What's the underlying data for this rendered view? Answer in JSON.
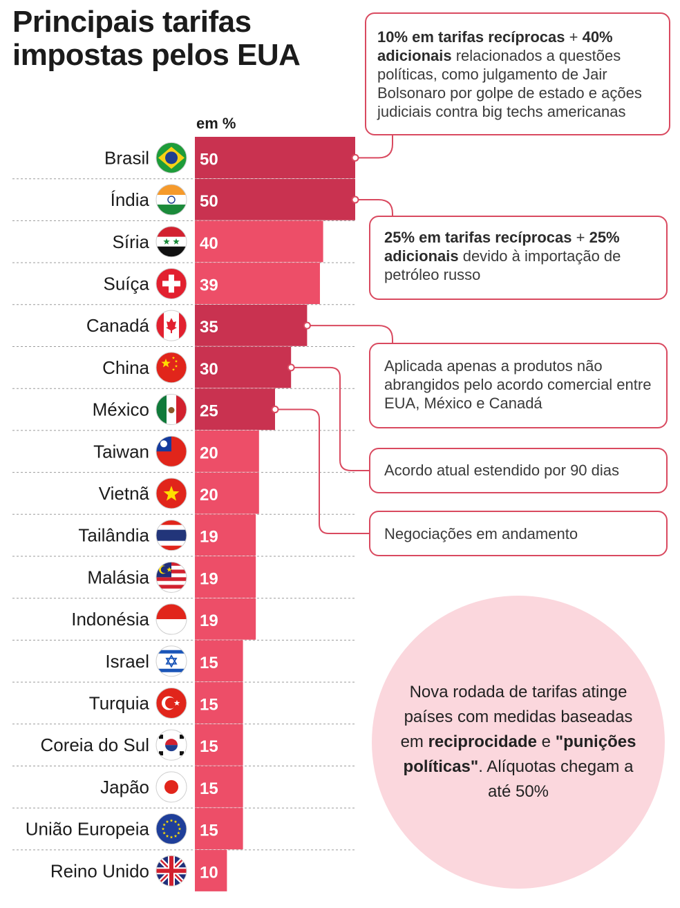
{
  "title": "Principais tarifas impostas pelos EUA",
  "unit_label": "em %",
  "colors": {
    "bar_dark": "#c93250",
    "bar_light": "#ed4e68",
    "connector": "#d9495f",
    "summary_bg": "#fbd7dd"
  },
  "chart_data": {
    "type": "bar",
    "orientation": "horizontal",
    "title": "Principais tarifas impostas pelos EUA",
    "xlabel": "em %",
    "ylabel": "",
    "xlim": [
      0,
      50
    ],
    "grid": false,
    "categories": [
      "Brasil",
      "Índia",
      "Síria",
      "Suíça",
      "Canadá",
      "China",
      "México",
      "Taiwan",
      "Vietnã",
      "Tailândia",
      "Malásia",
      "Indonésia",
      "Israel",
      "Turquia",
      "Coreia do Sul",
      "Japão",
      "União Europeia",
      "Reino Unido"
    ],
    "values": [
      50,
      50,
      40,
      39,
      35,
      30,
      25,
      20,
      20,
      19,
      19,
      19,
      15,
      15,
      15,
      15,
      15,
      10
    ],
    "highlighted": [
      "Brasil",
      "Índia",
      "Canadá",
      "China",
      "México"
    ],
    "flag_icons": [
      "brazil-flag-icon",
      "india-flag-icon",
      "syria-flag-icon",
      "switzerland-flag-icon",
      "canada-flag-icon",
      "china-flag-icon",
      "mexico-flag-icon",
      "taiwan-flag-icon",
      "vietnam-flag-icon",
      "thailand-flag-icon",
      "malaysia-flag-icon",
      "indonesia-flag-icon",
      "israel-flag-icon",
      "turkey-flag-icon",
      "south-korea-flag-icon",
      "japan-flag-icon",
      "european-union-flag-icon",
      "united-kingdom-flag-icon"
    ]
  },
  "annotations": {
    "brasil": {
      "bold1": "10% em tarifas recíprocas",
      "plus": " + ",
      "bold2": "40% adicionais",
      "rest": " relacionados a questões políticas, como julgamento de Jair Bolsonaro por golpe de estado e ações judiciais contra big techs americanas"
    },
    "india": {
      "bold1": "25% em tarifas recíprocas",
      "plus": " + ",
      "bold2": "25% adicionais",
      "rest": " devido à importação de petróleo russo"
    },
    "canada": {
      "text": "Aplicada apenas a produtos não abrangidos pelo acordo comercial entre EUA, México e Canadá"
    },
    "china": {
      "text": "Acordo atual estendido por 90 dias"
    },
    "mexico": {
      "text": "Negociações em andamento"
    }
  },
  "summary": {
    "t1": "Nova rodada de tarifas atinge países com medidas baseadas em ",
    "b1": "reciprocidade",
    "t2": " e ",
    "b2": "\"punições políticas\"",
    "t3": ". Alíquotas chegam a até 50%"
  }
}
